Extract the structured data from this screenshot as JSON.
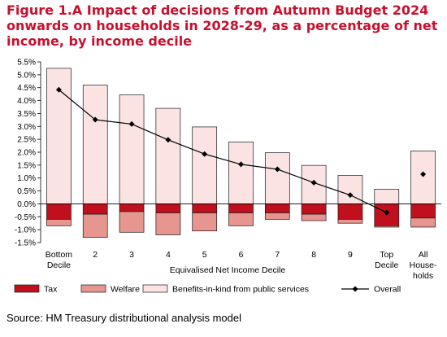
{
  "title": "Figure 1.A Impact of decisions from Autumn Budget 2024 onwards on households in 2028-29, as a percentage of net income, by income decile",
  "source": "Source: HM Treasury distributional analysis model",
  "chart_data": {
    "type": "bar",
    "stacked": true,
    "categories": [
      [
        "Bottom",
        "Decile"
      ],
      [
        "2"
      ],
      [
        "3"
      ],
      [
        "4"
      ],
      [
        "5"
      ],
      [
        "6"
      ],
      [
        "7"
      ],
      [
        "8"
      ],
      [
        "9"
      ],
      [
        "Top",
        "Decile"
      ],
      [
        "All",
        "House-",
        "holds"
      ]
    ],
    "xlabel": "Equivalised Net Income Decile",
    "ylabel": "",
    "ylim": [
      -1.5,
      5.5
    ],
    "yticks": [
      -1.5,
      -1.0,
      -0.5,
      0.0,
      0.5,
      1.0,
      1.5,
      2.0,
      2.5,
      3.0,
      3.5,
      4.0,
      4.5,
      5.0,
      5.5
    ],
    "ytick_labels": [
      "-1.5%",
      "-1.0%",
      "-0.5%",
      "0.0%",
      "0.5%",
      "1.0%",
      "1.5%",
      "2.0%",
      "2.5%",
      "3.0%",
      "3.5%",
      "4.0%",
      "4.5%",
      "5.0%",
      "5.5%"
    ],
    "grid": false,
    "legend_position": "bottom",
    "series": [
      {
        "name": "Tax",
        "kind": "bar",
        "color": "#c0101e",
        "values": [
          -0.6,
          -0.4,
          -0.3,
          -0.35,
          -0.35,
          -0.35,
          -0.35,
          -0.4,
          -0.6,
          -0.85,
          -0.55
        ]
      },
      {
        "name": "Welfare",
        "kind": "bar",
        "color": "#e6958f",
        "values": [
          -0.25,
          -0.9,
          -0.8,
          -0.85,
          -0.7,
          -0.5,
          -0.25,
          -0.25,
          -0.15,
          -0.05,
          -0.35
        ]
      },
      {
        "name": "Benefits-in-kind from public services",
        "kind": "bar",
        "color": "#fbe3e3",
        "values": [
          5.25,
          4.6,
          4.22,
          3.7,
          2.98,
          2.4,
          1.98,
          1.49,
          1.1,
          0.57,
          2.05
        ]
      },
      {
        "name": "Overall",
        "kind": "line",
        "color": "#000000",
        "values": [
          4.42,
          3.26,
          3.09,
          2.48,
          1.93,
          1.53,
          1.34,
          0.82,
          0.34,
          -0.34,
          1.15
        ]
      }
    ]
  }
}
